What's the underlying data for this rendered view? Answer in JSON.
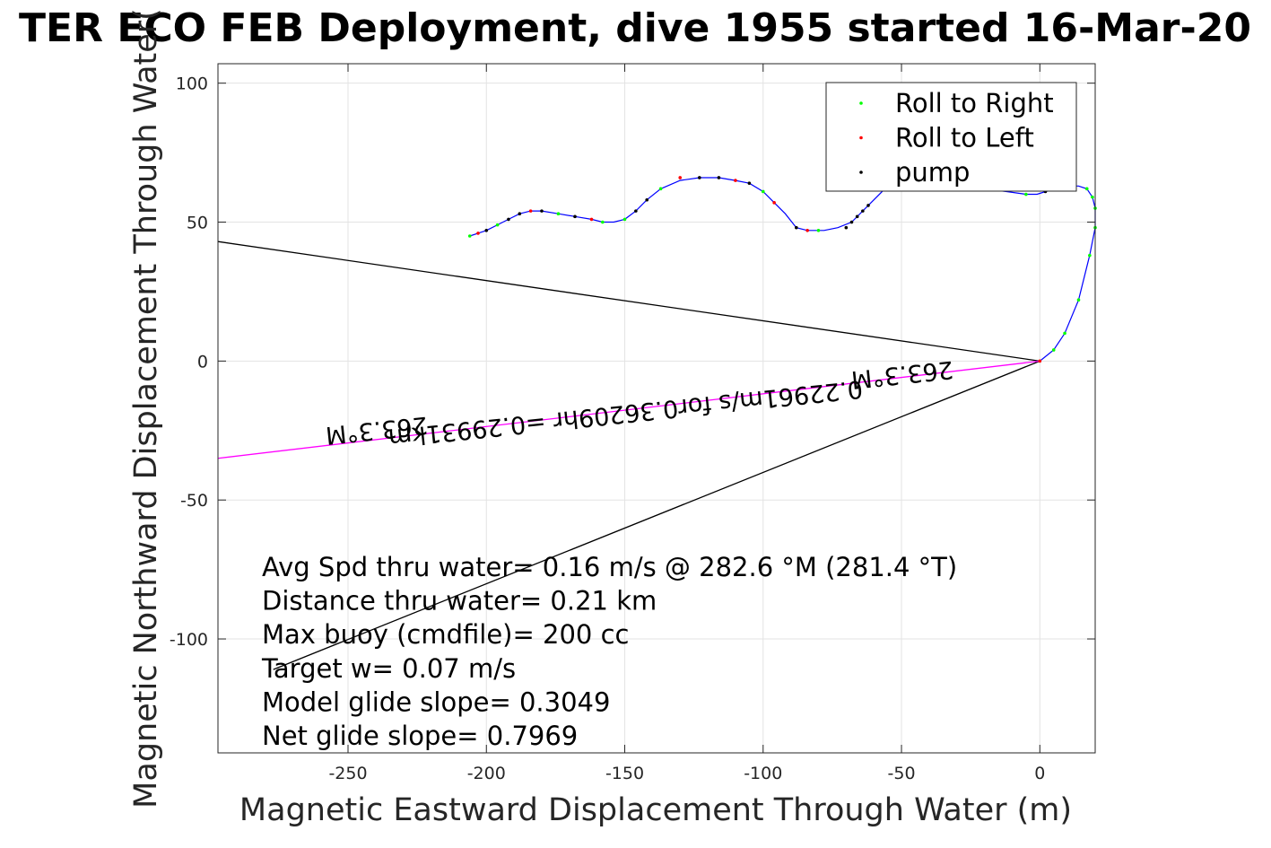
{
  "chart_data": {
    "type": "line",
    "title": "TER ECO FEB Deployment, dive 1955 started 16-Mar-20",
    "xlabel": "Magnetic Eastward Displacement Through Water (m)",
    "ylabel": "Magnetic Northward Displacement Through Water(",
    "xlim": [
      -297,
      20
    ],
    "ylim": [
      -141,
      107
    ],
    "xticks": [
      -250,
      -200,
      -150,
      -100,
      -50,
      0
    ],
    "yticks": [
      -100,
      -50,
      0,
      50,
      100
    ],
    "grid": true,
    "legend_position": "top-right",
    "legend": [
      {
        "label": "Roll to Right",
        "color": "#00ff00"
      },
      {
        "label": "Roll to Left",
        "color": "#ff0000"
      },
      {
        "label": "pump",
        "color": "#000000"
      }
    ],
    "track": {
      "color": "#0000ff",
      "x": [
        0,
        5,
        9,
        14,
        18,
        20,
        20,
        19,
        17,
        14,
        10,
        6,
        2,
        -1,
        -5,
        -12,
        -20,
        -30,
        -42,
        -56,
        -62,
        -68,
        -73,
        -78,
        -84,
        -88,
        -92,
        -96,
        -100,
        -105,
        -110,
        -116,
        -123,
        -130,
        -137,
        -142,
        -146,
        -150,
        -154,
        -158,
        -162,
        -168,
        -174,
        -180,
        -184,
        -188,
        -192,
        -196,
        -200,
        -203,
        -206
      ],
      "y": [
        0,
        4,
        10,
        22,
        38,
        48,
        55,
        59,
        62,
        63,
        63,
        62,
        61,
        60,
        60,
        61,
        62,
        62,
        62,
        62,
        56,
        50,
        48,
        47,
        47,
        48,
        53,
        57,
        61,
        64,
        65,
        66,
        66,
        65,
        62,
        58,
        54,
        51,
        50,
        50,
        51,
        52,
        53,
        54,
        54,
        53,
        51,
        49,
        47,
        46,
        45
      ]
    },
    "roll_right_points": {
      "x": [
        5,
        9,
        14,
        18,
        20,
        20,
        19,
        17,
        -5,
        -20,
        -42,
        -80,
        -100,
        -137,
        -150,
        -158,
        -174,
        -196,
        -206
      ],
      "y": [
        4,
        10,
        22,
        38,
        48,
        55,
        59,
        62,
        60,
        62,
        62,
        47,
        61,
        62,
        51,
        50,
        53,
        49,
        45
      ]
    },
    "roll_left_points": {
      "x": [
        0,
        -84,
        -96,
        -110,
        -130,
        -162,
        -184,
        -203
      ],
      "y": [
        0,
        47,
        57,
        65,
        66,
        51,
        54,
        46
      ]
    },
    "pump_points": {
      "x": [
        2,
        -62,
        -64,
        -66,
        -68,
        -70,
        -88,
        -105,
        -116,
        -123,
        -142,
        -146,
        -168,
        -180,
        -188,
        -192,
        -200
      ],
      "y": [
        61,
        56,
        54,
        52,
        50,
        48,
        48,
        64,
        66,
        66,
        58,
        54,
        52,
        54,
        53,
        51,
        47
      ]
    },
    "lines": [
      {
        "color": "#000000",
        "x1": 0,
        "y1": 0,
        "x2": -297,
        "y2": 43
      },
      {
        "color": "#000000",
        "x1": 0,
        "y1": 0,
        "x2": -277,
        "y2": -111
      },
      {
        "color": "#ff00ff",
        "x1": 0,
        "y1": 0,
        "x2": -297,
        "y2": -35
      }
    ],
    "line_annotations": [
      {
        "text": "263.3°M",
        "x": -50,
        "y": -2,
        "angle": 174
      },
      {
        "text": "263.3°M",
        "x": -240,
        "y": -22,
        "angle": 174
      },
      {
        "text": "0.22961m/s for0.36209hr =0.29931km",
        "x": -150,
        "y": -16,
        "angle": 174
      }
    ],
    "stats": [
      "Avg Spd thru water=  0.16 m/s @ 282.6 °M (281.4 °T)",
      "Distance thru water=  0.21 km",
      "Max buoy (cmdfile)= 200 cc",
      "Target w= 0.07 m/s",
      "Model glide slope= 0.3049",
      "Net glide slope= 0.7969"
    ]
  }
}
